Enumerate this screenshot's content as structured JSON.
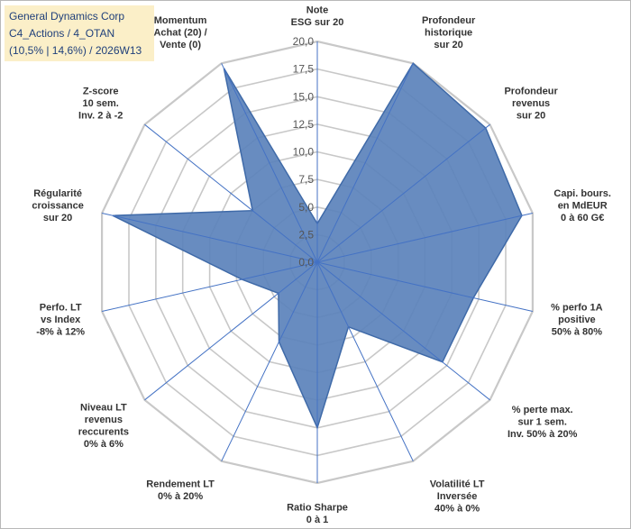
{
  "header": {
    "line1": "General Dynamics Corp",
    "line2": "C4_Actions / 4_OTAN",
    "line3": "(10,5% | 14,6%) / 2026W13"
  },
  "colors": {
    "fill": "#5b82bb",
    "stroke": "#3f6aa8",
    "grid": "#c8c8c8",
    "spoke": "#4472c4",
    "title_bg": "#fbefc8"
  },
  "chart_data": {
    "type": "radar",
    "rmin": 0,
    "rmax": 20,
    "ticks": [
      "0,0",
      "2,5",
      "5,0",
      "7,5",
      "10,0",
      "12,5",
      "15,0",
      "17,5",
      "20,0"
    ],
    "axes": [
      {
        "label": [
          "Note",
          "ESG sur 20"
        ],
        "value": 3.5
      },
      {
        "label": [
          "Profondeur",
          "historique",
          "sur 20"
        ],
        "value": 20
      },
      {
        "label": [
          "Profondeur",
          "revenus",
          "sur 20"
        ],
        "value": 19.5
      },
      {
        "label": [
          "Capi. bours.",
          "en MdEUR",
          "0 à 60 G€"
        ],
        "value": 19
      },
      {
        "label": [
          "% perfo 1A",
          "positive",
          "50% à 80%"
        ],
        "value": 14.5
      },
      {
        "label": [
          "% perte max.",
          "sur 1 sem.",
          "Inv. 50% à 20%"
        ],
        "value": 14.5
      },
      {
        "label": [
          "Volatilité LT",
          "Inversée",
          "40% à 0%"
        ],
        "value": 6.5
      },
      {
        "label": [
          "Ratio Sharpe",
          "0 à 1"
        ],
        "value": 15
      },
      {
        "label": [
          "Rendement LT",
          "0% à 20%"
        ],
        "value": 8
      },
      {
        "label": [
          "Niveau LT",
          "revenus",
          "reccurents",
          "0% à 6%"
        ],
        "value": 4.5
      },
      {
        "label": [
          "Perfo. LT",
          "vs Index",
          "-8% à 12%"
        ],
        "value": 7
      },
      {
        "label": [
          "Régularité",
          "croissance",
          "sur 20"
        ],
        "value": 19
      },
      {
        "label": [
          "Z-score",
          "10 sem.",
          "Inv. 2 à -2"
        ],
        "value": 7.5
      },
      {
        "label": [
          "Momentum",
          "Achat (20) /",
          "Vente (0)"
        ],
        "value": 19.5
      }
    ]
  }
}
